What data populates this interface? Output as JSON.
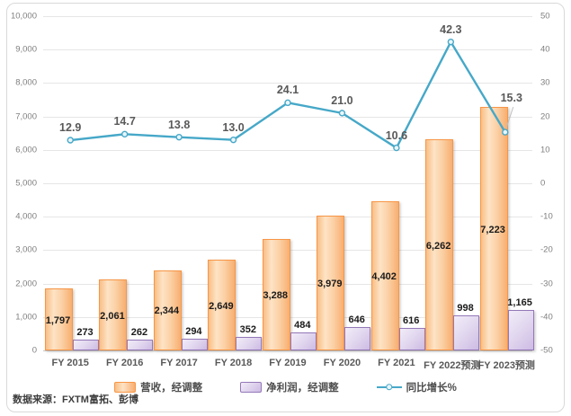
{
  "chart_data": {
    "type": "bar",
    "subtype": "grouped-bars-with-line",
    "categories": [
      "FY 2015",
      "FY 2016",
      "FY 2017",
      "FY 2018",
      "FY 2019",
      "FY 2020",
      "FY 2021",
      "FY 2022预测",
      "FY 2023预测"
    ],
    "series": [
      {
        "name": "营收，经调整",
        "type": "bar",
        "axis": "left",
        "fill_color": "#FCD2A4",
        "border_color": "#F79646",
        "values": [
          1797,
          2061,
          2344,
          2649,
          3288,
          3979,
          4402,
          6262,
          7223
        ],
        "labels": [
          "1,797",
          "2,061",
          "2,344",
          "2,649",
          "3,288",
          "3,979",
          "4,402",
          "6,262",
          "7,223"
        ]
      },
      {
        "name": "净利润，经调整",
        "type": "bar",
        "axis": "left",
        "fill_color": "#DCD0EA",
        "border_color": "#9478B8",
        "values": [
          273,
          262,
          294,
          352,
          484,
          646,
          616,
          998,
          1165
        ],
        "labels": [
          "273",
          "262",
          "294",
          "352",
          "484",
          "646",
          "616",
          "998",
          "1,165"
        ]
      },
      {
        "name": "同比增长%",
        "type": "line",
        "axis": "right",
        "color": "#46A8C8",
        "values": [
          12.9,
          14.7,
          13.8,
          13.0,
          24.1,
          21.0,
          10.6,
          42.3,
          15.3
        ],
        "labels": [
          "12.9",
          "14.7",
          "13.8",
          "13.0",
          "24.1",
          "21.0",
          "10.6",
          "42.3",
          "15.3"
        ]
      }
    ],
    "left_axis": {
      "min": 0,
      "max": 10000,
      "step": 1000,
      "ticks": [
        "10,000",
        "9,000",
        "8,000",
        "7,000",
        "6,000",
        "5,000",
        "4,000",
        "3,000",
        "2,000",
        "1,000",
        "0"
      ]
    },
    "right_axis": {
      "min": -50,
      "max": 50,
      "step": 10,
      "ticks": [
        "50",
        "40",
        "30",
        "20",
        "10",
        "0",
        "-10",
        "-20",
        "-30",
        "-40",
        "-50"
      ]
    },
    "grid": true,
    "legend_position": "bottom",
    "title": "",
    "xlabel": "",
    "ylabel": ""
  },
  "source": {
    "text": "数据来源：FXTM富拓、彭博"
  }
}
